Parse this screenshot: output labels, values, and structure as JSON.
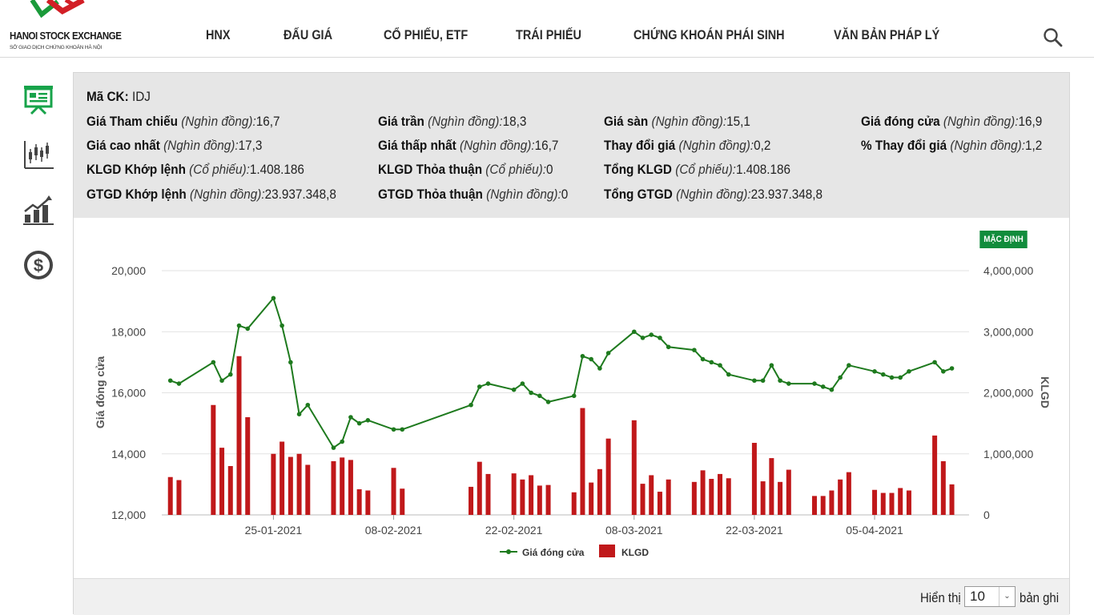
{
  "header": {
    "logo_title": "HANOI STOCK EXCHANGE",
    "logo_subtitle": "SỞ GIAO DỊCH CHỨNG KHOÁN HÀ NỘI",
    "nav": [
      "HNX",
      "ĐẤU GIÁ",
      "CỔ PHIẾU, ETF",
      "TRÁI PHIẾU",
      "CHỨNG KHOÁN PHÁI SINH",
      "VĂN BẢN PHÁP LÝ"
    ],
    "search_icon": "search-icon"
  },
  "sidebar": {
    "icons": [
      "presentation-board-icon",
      "candlestick-chart-icon",
      "growth-chart-icon",
      "dollar-coin-icon"
    ],
    "active_color": "#17a34a"
  },
  "info": {
    "symbol_label": "Mã CK:",
    "symbol_value": "IDJ",
    "unit_price": "(Nghìn đồng):",
    "unit_shares": "(Cổ phiếu):",
    "ref_label": "Giá Tham chiếu",
    "ref_value": "16,7",
    "ceil_label": "Giá trần",
    "ceil_value": "18,3",
    "floor_label": "Giá sàn",
    "floor_value": "15,1",
    "close_label": "Giá đóng cửa",
    "close_value": "16,9",
    "high_label": "Giá cao nhất",
    "high_value": "17,3",
    "low_label": "Giá thấp nhất",
    "low_value": "16,7",
    "change_label": "Thay đổi giá",
    "change_value": "0,2",
    "pct_label": "% Thay đổi giá",
    "pct_value": "1,2",
    "vol_match_label": "KLGD Khớp lệnh",
    "vol_match_value": "1.408.186",
    "vol_deal_label": "KLGD Thỏa thuận",
    "vol_deal_value": "0",
    "vol_total_label": "Tổng KLGD",
    "vol_total_value": "1.408.186",
    "val_match_label": "GTGD Khớp lệnh",
    "val_match_value": "23.937.348,8",
    "val_deal_label": "GTGD Thỏa thuận",
    "val_deal_value": "0",
    "val_total_label": "Tổng GTGD",
    "val_total_value": "23.937.348,8"
  },
  "chart_controls": {
    "default_button": "MẶC ĐỊNH"
  },
  "chart_data": {
    "type": "line",
    "ylabel": "Giá đóng cửa",
    "y2label": "KLGD",
    "ylim": [
      12000,
      20000
    ],
    "y2lim": [
      0,
      4000000
    ],
    "yticks": [
      "20,000",
      "18,000",
      "16,000",
      "14,000",
      "12,000"
    ],
    "y2ticks": [
      "4,000,000",
      "3,000,000",
      "2,000,000",
      "1,000,000",
      "0"
    ],
    "xticks": [
      {
        "label": "25-01-2021",
        "day": "2021-01-25"
      },
      {
        "label": "08-02-2021",
        "day": "2021-02-08"
      },
      {
        "label": "22-02-2021",
        "day": "2021-02-22"
      },
      {
        "label": "08-03-2021",
        "day": "2021-03-08"
      },
      {
        "label": "22-03-2021",
        "day": "2021-03-22"
      },
      {
        "label": "05-04-2021",
        "day": "2021-04-05"
      }
    ],
    "legend": [
      "Giá đóng cửa",
      "KLGD"
    ],
    "line_color": "#1e7a1e",
    "bar_color": "#c0181a",
    "points": [
      {
        "date": "2021-01-13",
        "price": 16400,
        "vol": 620000
      },
      {
        "date": "2021-01-14",
        "price": 16300,
        "vol": 570000
      },
      {
        "date": "2021-01-18",
        "price": 17000,
        "vol": 1800000
      },
      {
        "date": "2021-01-19",
        "price": 16400,
        "vol": 1100000
      },
      {
        "date": "2021-01-20",
        "price": 16600,
        "vol": 800000
      },
      {
        "date": "2021-01-21",
        "price": 18200,
        "vol": 2600000
      },
      {
        "date": "2021-01-22",
        "price": 18100,
        "vol": 1600000
      },
      {
        "date": "2021-01-25",
        "price": 19100,
        "vol": 1000000
      },
      {
        "date": "2021-01-26",
        "price": 18200,
        "vol": 1200000
      },
      {
        "date": "2021-01-27",
        "price": 17000,
        "vol": 950000
      },
      {
        "date": "2021-01-28",
        "price": 15300,
        "vol": 1000000
      },
      {
        "date": "2021-01-29",
        "price": 15600,
        "vol": 820000
      },
      {
        "date": "2021-02-01",
        "price": 14200,
        "vol": 880000
      },
      {
        "date": "2021-02-02",
        "price": 14400,
        "vol": 940000
      },
      {
        "date": "2021-02-03",
        "price": 15200,
        "vol": 900000
      },
      {
        "date": "2021-02-04",
        "price": 15000,
        "vol": 420000
      },
      {
        "date": "2021-02-05",
        "price": 15100,
        "vol": 400000
      },
      {
        "date": "2021-02-08",
        "price": 14800,
        "vol": 770000
      },
      {
        "date": "2021-02-09",
        "price": 14800,
        "vol": 430000
      },
      {
        "date": "2021-02-17",
        "price": 15600,
        "vol": 460000
      },
      {
        "date": "2021-02-18",
        "price": 16200,
        "vol": 870000
      },
      {
        "date": "2021-02-19",
        "price": 16300,
        "vol": 670000
      },
      {
        "date": "2021-02-22",
        "price": 16100,
        "vol": 680000
      },
      {
        "date": "2021-02-23",
        "price": 16300,
        "vol": 580000
      },
      {
        "date": "2021-02-24",
        "price": 16000,
        "vol": 650000
      },
      {
        "date": "2021-02-25",
        "price": 15900,
        "vol": 480000
      },
      {
        "date": "2021-02-26",
        "price": 15700,
        "vol": 490000
      },
      {
        "date": "2021-03-01",
        "price": 15900,
        "vol": 370000
      },
      {
        "date": "2021-03-02",
        "price": 17200,
        "vol": 1750000
      },
      {
        "date": "2021-03-03",
        "price": 17100,
        "vol": 530000
      },
      {
        "date": "2021-03-04",
        "price": 16800,
        "vol": 750000
      },
      {
        "date": "2021-03-05",
        "price": 17300,
        "vol": 1250000
      },
      {
        "date": "2021-03-08",
        "price": 18000,
        "vol": 1550000
      },
      {
        "date": "2021-03-09",
        "price": 17800,
        "vol": 510000
      },
      {
        "date": "2021-03-10",
        "price": 17900,
        "vol": 650000
      },
      {
        "date": "2021-03-11",
        "price": 17800,
        "vol": 380000
      },
      {
        "date": "2021-03-12",
        "price": 17500,
        "vol": 580000
      },
      {
        "date": "2021-03-15",
        "price": 17400,
        "vol": 540000
      },
      {
        "date": "2021-03-16",
        "price": 17100,
        "vol": 730000
      },
      {
        "date": "2021-03-17",
        "price": 17000,
        "vol": 590000
      },
      {
        "date": "2021-03-18",
        "price": 16900,
        "vol": 670000
      },
      {
        "date": "2021-03-19",
        "price": 16600,
        "vol": 600000
      },
      {
        "date": "2021-03-22",
        "price": 16400,
        "vol": 1180000
      },
      {
        "date": "2021-03-23",
        "price": 16400,
        "vol": 550000
      },
      {
        "date": "2021-03-24",
        "price": 16900,
        "vol": 930000
      },
      {
        "date": "2021-03-25",
        "price": 16400,
        "vol": 540000
      },
      {
        "date": "2021-03-26",
        "price": 16300,
        "vol": 740000
      },
      {
        "date": "2021-03-29",
        "price": 16300,
        "vol": 310000
      },
      {
        "date": "2021-03-30",
        "price": 16200,
        "vol": 310000
      },
      {
        "date": "2021-03-31",
        "price": 16100,
        "vol": 400000
      },
      {
        "date": "2021-04-01",
        "price": 16500,
        "vol": 580000
      },
      {
        "date": "2021-04-02",
        "price": 16900,
        "vol": 700000
      },
      {
        "date": "2021-04-05",
        "price": 16700,
        "vol": 410000
      },
      {
        "date": "2021-04-06",
        "price": 16600,
        "vol": 360000
      },
      {
        "date": "2021-04-07",
        "price": 16500,
        "vol": 360000
      },
      {
        "date": "2021-04-08",
        "price": 16500,
        "vol": 440000
      },
      {
        "date": "2021-04-09",
        "price": 16700,
        "vol": 400000
      },
      {
        "date": "2021-04-12",
        "price": 17000,
        "vol": 1300000
      },
      {
        "date": "2021-04-13",
        "price": 16700,
        "vol": 880000
      },
      {
        "date": "2021-04-14",
        "price": 16800,
        "vol": 500000
      }
    ]
  },
  "footer": {
    "show_label": "Hiển thị",
    "page_size": "10",
    "records_label": "bản ghi"
  }
}
